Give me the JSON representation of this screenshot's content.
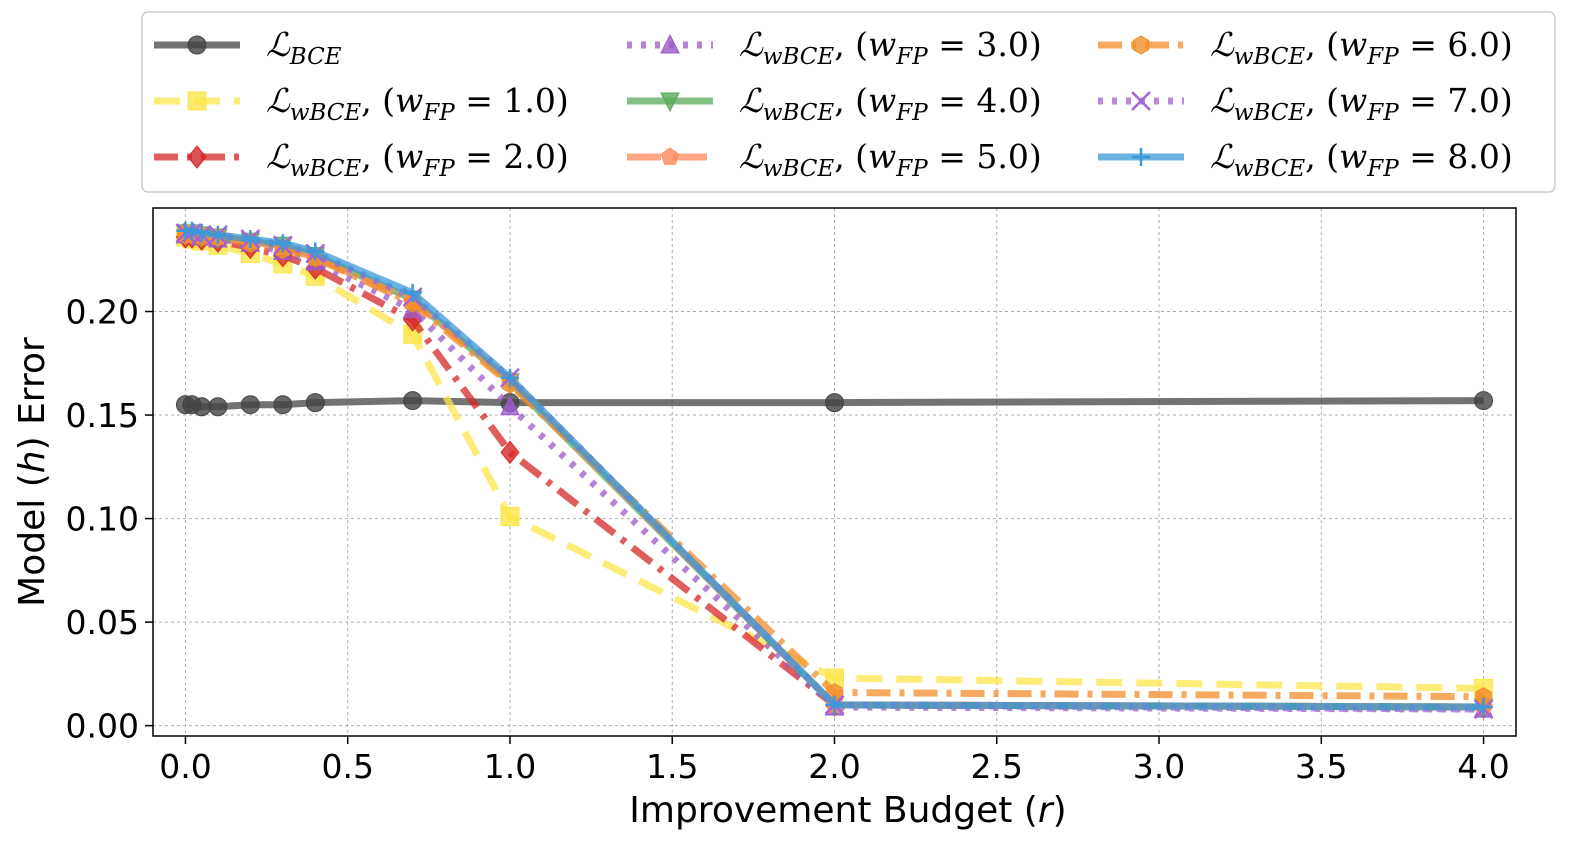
{
  "chart_data": {
    "type": "line",
    "xlabel_parts": [
      {
        "t": "Improvement Budget (",
        "italic": false
      },
      {
        "t": "r",
        "italic": true
      },
      {
        "t": ")",
        "italic": false
      }
    ],
    "ylabel_parts": [
      {
        "t": "Model (",
        "italic": false
      },
      {
        "t": "h",
        "italic": true
      },
      {
        "t": ") Error",
        "italic": false
      }
    ],
    "xlim": [
      -0.1,
      4.1
    ],
    "ylim": [
      -0.005,
      0.25
    ],
    "xticks": [
      "0.0",
      "0.5",
      "1.0",
      "1.5",
      "2.0",
      "2.5",
      "3.0",
      "3.5",
      "4.0"
    ],
    "yticks": [
      "0.00",
      "0.05",
      "0.10",
      "0.15",
      "0.20"
    ],
    "grid": true,
    "legend_position": "top",
    "x": [
      0.0,
      0.02,
      0.05,
      0.1,
      0.2,
      0.3,
      0.4,
      0.7,
      1.0,
      2.0,
      4.0
    ],
    "series": [
      {
        "name": "ℒ_BCE",
        "label_main": "ℒ",
        "label_sub": "BCE",
        "label_suffix": "",
        "color": "#444444",
        "marker": "circle",
        "dash": "solid",
        "values": [
          0.155,
          0.155,
          0.154,
          0.154,
          0.155,
          0.155,
          0.156,
          0.157,
          0.156,
          0.156,
          0.157
        ]
      },
      {
        "name": "ℒ_wBCE, (w_FP = 1.0)",
        "label_main": "ℒ",
        "label_sub": "wBCE",
        "label_suffix": "1.0",
        "color": "#fde64b",
        "marker": "square",
        "dash": "dashed",
        "values": [
          0.236,
          0.235,
          0.234,
          0.232,
          0.228,
          0.223,
          0.217,
          0.189,
          0.101,
          0.023,
          0.018
        ]
      },
      {
        "name": "ℒ_wBCE, (w_FP = 2.0)",
        "label_main": "ℒ",
        "label_sub": "wBCE",
        "label_suffix": "2.0",
        "color": "#d62728",
        "marker": "diamond",
        "dash": "dashdot",
        "values": [
          0.236,
          0.236,
          0.235,
          0.234,
          0.231,
          0.227,
          0.221,
          0.196,
          0.132,
          0.01,
          0.009
        ]
      },
      {
        "name": "ℒ_wBCE, (w_FP = 3.0)",
        "label_main": "ℒ",
        "label_sub": "wBCE",
        "label_suffix": "3.0",
        "color": "#9b59c9",
        "marker": "triangle-up",
        "dash": "dotted",
        "values": [
          0.237,
          0.237,
          0.236,
          0.235,
          0.233,
          0.229,
          0.224,
          0.201,
          0.154,
          0.009,
          0.008
        ]
      },
      {
        "name": "ℒ_wBCE, (w_FP = 4.0)",
        "label_main": "ℒ",
        "label_sub": "wBCE",
        "label_suffix": "4.0",
        "color": "#5aab5a",
        "marker": "triangle-down",
        "dash": "solid",
        "values": [
          0.238,
          0.238,
          0.237,
          0.236,
          0.234,
          0.232,
          0.227,
          0.206,
          0.166,
          0.01,
          0.009
        ]
      },
      {
        "name": "ℒ_wBCE, (w_FP = 5.0)",
        "label_main": "ℒ",
        "label_sub": "wBCE",
        "label_suffix": "5.0",
        "color": "#ff8a5c",
        "marker": "pentagon",
        "dash": "longdash",
        "values": [
          0.238,
          0.238,
          0.237,
          0.236,
          0.234,
          0.231,
          0.226,
          0.205,
          0.167,
          0.01,
          0.009
        ]
      },
      {
        "name": "ℒ_wBCE, (w_FP = 6.0)",
        "label_main": "ℒ",
        "label_sub": "wBCE",
        "label_suffix": "6.0",
        "color": "#f28e2b",
        "marker": "hexagon",
        "dash": "dashdot",
        "values": [
          0.237,
          0.237,
          0.236,
          0.236,
          0.233,
          0.23,
          0.226,
          0.204,
          0.165,
          0.016,
          0.014
        ]
      },
      {
        "name": "ℒ_wBCE, (w_FP = 7.0)",
        "label_main": "ℒ",
        "label_sub": "wBCE",
        "label_suffix": "7.0",
        "color": "#a463d6",
        "marker": "x",
        "dash": "dotted",
        "values": [
          0.238,
          0.238,
          0.237,
          0.237,
          0.235,
          0.232,
          0.228,
          0.207,
          0.168,
          0.01,
          0.008
        ]
      },
      {
        "name": "ℒ_wBCE, (w_FP = 8.0)",
        "label_main": "ℒ",
        "label_sub": "wBCE",
        "label_suffix": "8.0",
        "color": "#3a9ad9",
        "marker": "plus",
        "dash": "solid",
        "values": [
          0.239,
          0.239,
          0.238,
          0.237,
          0.235,
          0.233,
          0.229,
          0.209,
          0.168,
          0.01,
          0.009
        ]
      }
    ]
  }
}
